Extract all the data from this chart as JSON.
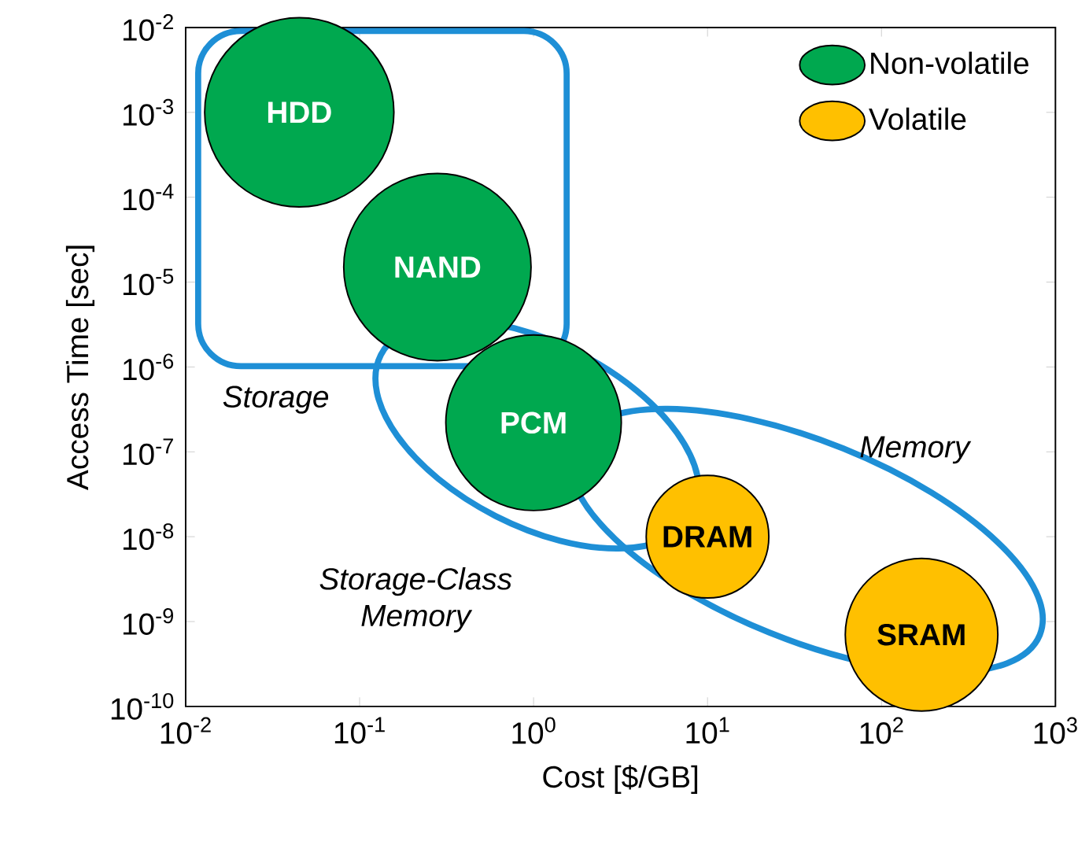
{
  "chart_data": {
    "type": "bubble",
    "xlabel": "Cost [$/GB]",
    "ylabel": "Access Time [sec]",
    "series": [
      {
        "name": "Non-volatile",
        "color": "#00a84f",
        "x": [
          0.045,
          0.28,
          1
        ],
        "values": [
          0.001,
          1.5e-05,
          2.2e-07
        ],
        "sizes": [
          1,
          0.98,
          0.86
        ]
      },
      {
        "name": "Volatile",
        "color": "#ffc000",
        "x": [
          10,
          170
        ],
        "values": [
          1e-08,
          7e-10
        ],
        "sizes": [
          0.42,
          0.65
        ]
      }
    ],
    "log": "xy",
    "xlim": [
      0.01,
      1000
    ],
    "ylim": [
      1e-10,
      0.01
    ],
    "xticks": [
      {
        "value": 0.01,
        "label": "10$^{-2}$"
      },
      {
        "value": 0.1,
        "label": "10$^{-1}$"
      },
      {
        "value": 1,
        "label": "10$^{0}$"
      },
      {
        "value": 10,
        "label": "10$^{1}$"
      },
      {
        "value": 100,
        "label": "10$^{2}$"
      },
      {
        "value": 1000,
        "label": "10$^{3}$"
      }
    ],
    "yticks": [
      {
        "value": 1e-10,
        "label": "10$^{-10}$"
      },
      {
        "value": 1e-09,
        "label": "10$^{-9}$"
      },
      {
        "value": 1e-08,
        "label": "10$^{-8}$"
      },
      {
        "value": 1e-07,
        "label": "10$^{-7}$"
      },
      {
        "value": 1e-06,
        "label": "10$^{-6}$"
      },
      {
        "value": 1e-05,
        "label": "10$^{-5}$"
      },
      {
        "value": 0.0001,
        "label": "10$^{-4}$"
      },
      {
        "value": 0.001,
        "label": "10$^{-3}$"
      },
      {
        "value": 0.01,
        "label": "10$^{-2}$"
      }
    ],
    "legend": "top right",
    "grid": false,
    "annotations": [
      {
        "text": "HDD",
        "x": 0.045,
        "y": 0.001
      },
      {
        "text": "NAND",
        "x": 0.28,
        "y": 1.5e-05
      },
      {
        "text": "PCM",
        "x": 1,
        "y": 2.2e-07
      },
      {
        "text": "DRAM",
        "x": 10,
        "y": 1e-08
      },
      {
        "text": "SRAM",
        "x": 170,
        "y": 7e-10
      },
      "Storage",
      "Storage-Class Memory",
      "Memory"
    ]
  }
}
